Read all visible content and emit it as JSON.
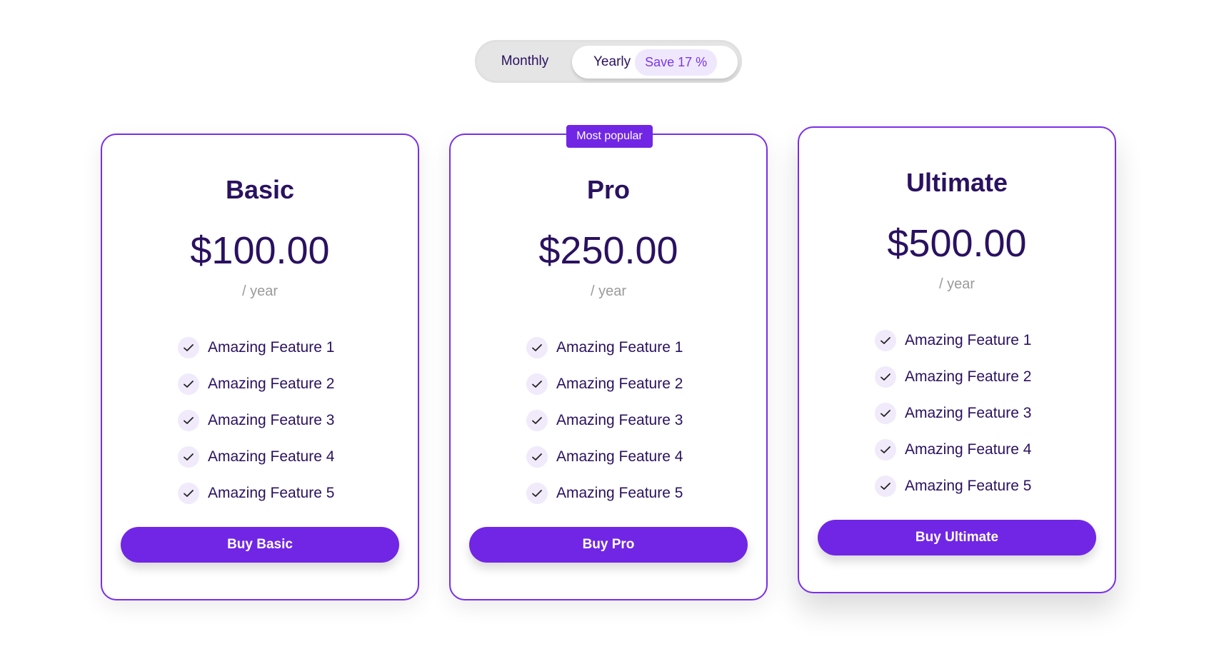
{
  "toggle": {
    "monthly": "Monthly",
    "yearly": "Yearly",
    "save_badge": "Save 17 %",
    "selected": "Yearly"
  },
  "colors": {
    "accent": "#7126e5",
    "text": "#2a1160",
    "muted": "#9a9a9a",
    "check_bg": "#f0eafb"
  },
  "plans": [
    {
      "name": "Basic",
      "price": "$100.00",
      "period": "/ year",
      "features": [
        "Amazing Feature 1",
        "Amazing Feature 2",
        "Amazing Feature 3",
        "Amazing Feature 4",
        "Amazing Feature 5"
      ],
      "button": "Buy Basic"
    },
    {
      "name": "Pro",
      "badge": "Most popular",
      "price": "$250.00",
      "period": "/ year",
      "features": [
        "Amazing Feature 1",
        "Amazing Feature 2",
        "Amazing Feature 3",
        "Amazing Feature 4",
        "Amazing Feature 5"
      ],
      "button": "Buy Pro"
    },
    {
      "name": "Ultimate",
      "price": "$500.00",
      "period": "/ year",
      "features": [
        "Amazing Feature 1",
        "Amazing Feature 2",
        "Amazing Feature 3",
        "Amazing Feature 4",
        "Amazing Feature 5"
      ],
      "button": "Buy Ultimate"
    }
  ]
}
